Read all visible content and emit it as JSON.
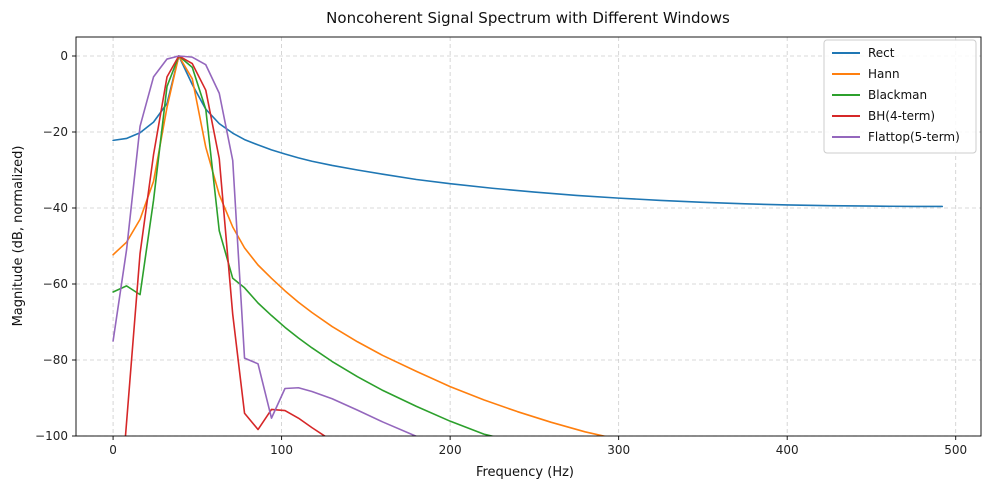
{
  "chart_data": {
    "type": "line",
    "title": "Noncoherent Signal Spectrum with Different Windows",
    "xlabel": "Frequency (Hz)",
    "ylabel": "Magnitude (dB, normalized)",
    "xlim": [
      -22,
      515
    ],
    "ylim": [
      -100,
      5
    ],
    "xticks": [
      0,
      100,
      200,
      300,
      400,
      500
    ],
    "yticks": [
      0,
      -20,
      -40,
      -60,
      -80,
      -100
    ],
    "grid": true,
    "legend_position": "top-right",
    "series": [
      {
        "name": "Rect",
        "color": "#1f77b4",
        "x": [
          0,
          8,
          16,
          24,
          32,
          39,
          47,
          55,
          63,
          71,
          78,
          86,
          94,
          102,
          110,
          118,
          130,
          145,
          160,
          180,
          200,
          225,
          250,
          275,
          300,
          325,
          350,
          375,
          400,
          425,
          450,
          475,
          492
        ],
        "y": [
          -22.2,
          -21.7,
          -20.2,
          -17.4,
          -12.5,
          0.0,
          -7.5,
          -14.0,
          -17.8,
          -20.3,
          -22.0,
          -23.4,
          -24.7,
          -25.8,
          -26.8,
          -27.7,
          -28.8,
          -30.0,
          -31.1,
          -32.5,
          -33.6,
          -34.8,
          -35.8,
          -36.7,
          -37.4,
          -38.0,
          -38.5,
          -38.9,
          -39.2,
          -39.4,
          -39.5,
          -39.6,
          -39.6
        ]
      },
      {
        "name": "Hann",
        "color": "#ff7f0e",
        "x": [
          0,
          8,
          16,
          24,
          32,
          39,
          47,
          55,
          63,
          71,
          78,
          86,
          94,
          102,
          110,
          118,
          130,
          145,
          160,
          180,
          200,
          220,
          240,
          260,
          280,
          296
        ],
        "y": [
          -52.3,
          -49.0,
          -43.0,
          -33.0,
          -13.5,
          0.0,
          -6.0,
          -24.0,
          -36.5,
          -45.0,
          -50.5,
          -55.0,
          -58.5,
          -61.8,
          -64.8,
          -67.5,
          -71.2,
          -75.2,
          -78.8,
          -83.0,
          -87.0,
          -90.5,
          -93.6,
          -96.4,
          -98.9,
          -100.5
        ]
      },
      {
        "name": "Blackman",
        "color": "#2ca02c",
        "x": [
          0,
          8,
          16,
          24,
          32,
          39,
          47,
          55,
          63,
          71,
          78,
          86,
          94,
          102,
          110,
          118,
          130,
          145,
          160,
          180,
          200,
          220,
          234
        ],
        "y": [
          -62.1,
          -60.5,
          -62.8,
          -38.0,
          -8.0,
          0.0,
          -3.0,
          -14.0,
          -46.0,
          -58.5,
          -61.0,
          -65.0,
          -68.3,
          -71.4,
          -74.2,
          -76.8,
          -80.4,
          -84.4,
          -88.0,
          -92.2,
          -96.1,
          -99.5,
          -101.0
        ]
      },
      {
        "name": "BH(4-term)",
        "color": "#d62728",
        "x": [
          7,
          16,
          24,
          32,
          39,
          47,
          55,
          63,
          71,
          78,
          86,
          94,
          102,
          110,
          118,
          129
        ],
        "y": [
          -102.0,
          -52.0,
          -26.0,
          -5.5,
          0.0,
          -2.0,
          -9.0,
          -27.0,
          -68.0,
          -94.0,
          -98.3,
          -93.0,
          -93.3,
          -95.3,
          -97.8,
          -101.0
        ]
      },
      {
        "name": "Flattop(5-term)",
        "color": "#9467bd",
        "x": [
          0,
          8,
          16,
          24,
          32,
          39,
          47,
          55,
          63,
          71,
          78,
          86,
          94,
          102,
          110,
          118,
          130,
          145,
          160,
          180
        ],
        "y": [
          -75.0,
          -51.0,
          -18.5,
          -5.5,
          -0.8,
          0.0,
          -0.3,
          -2.3,
          -9.8,
          -27.5,
          -79.5,
          -81.0,
          -95.3,
          -87.5,
          -87.3,
          -88.3,
          -90.2,
          -93.2,
          -96.3,
          -100.1
        ]
      }
    ]
  }
}
